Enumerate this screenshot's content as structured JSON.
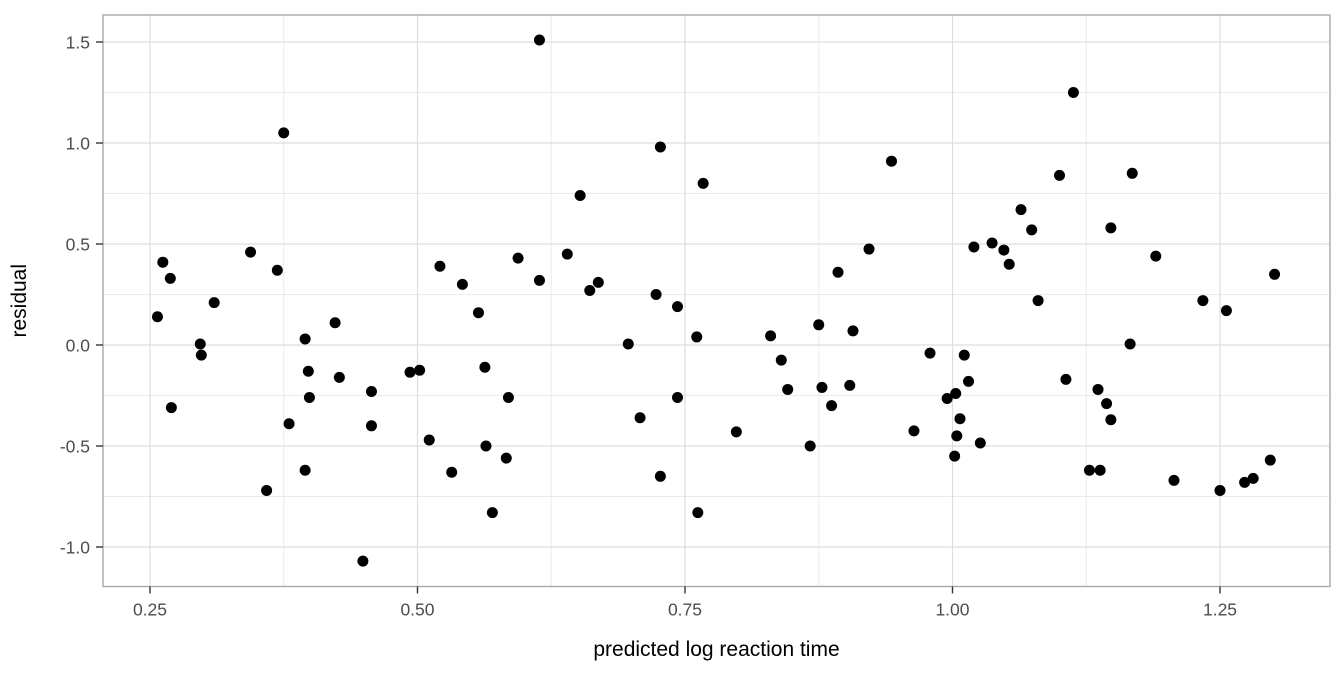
{
  "chart_data": {
    "type": "scatter",
    "title": "",
    "xlabel": "predicted log reaction time",
    "ylabel": "residual",
    "x_ticks": [
      0.25,
      0.5,
      0.75,
      1.0,
      1.25
    ],
    "x_tick_labels": [
      "0.25",
      "0.50",
      "0.75",
      "1.00",
      "1.25"
    ],
    "y_ticks": [
      -1.0,
      -0.5,
      0.0,
      0.5,
      1.0,
      1.5
    ],
    "y_tick_labels": [
      "-1.0",
      "-0.5",
      "0.0",
      "0.5",
      "1.0",
      "1.5"
    ],
    "xlim": [
      0.2061,
      1.3528
    ],
    "ylim": [
      -1.1955,
      1.6337
    ],
    "grid": true,
    "legend": false,
    "colors": {
      "background": "#ffffff",
      "panel_background": "#ffffff",
      "panel_border": "#a8a8a8",
      "grid_major": "#dddddd",
      "grid_minor": "#ebebeb",
      "tick_mark": "#333333",
      "tick_label": "#4d4d4d",
      "axis_title": "#000000",
      "point": "#000000"
    },
    "point_radius": 5.5,
    "points": [
      [
        0.375,
        1.05
      ],
      [
        0.262,
        0.41
      ],
      [
        0.269,
        0.33
      ],
      [
        0.344,
        0.46
      ],
      [
        0.369,
        0.37
      ],
      [
        0.31,
        0.21
      ],
      [
        0.257,
        0.14
      ],
      [
        0.423,
        0.11
      ],
      [
        0.395,
        0.03
      ],
      [
        0.297,
        0.005
      ],
      [
        0.298,
        -0.05
      ],
      [
        0.398,
        -0.13
      ],
      [
        0.427,
        -0.16
      ],
      [
        0.457,
        -0.23
      ],
      [
        0.399,
        -0.26
      ],
      [
        0.27,
        -0.31
      ],
      [
        0.38,
        -0.39
      ],
      [
        0.457,
        -0.4
      ],
      [
        0.395,
        -0.62
      ],
      [
        0.359,
        -0.72
      ],
      [
        0.449,
        -1.07
      ],
      [
        0.493,
        -0.135
      ],
      [
        0.502,
        -0.125
      ],
      [
        0.614,
        1.51
      ],
      [
        0.727,
        0.98
      ],
      [
        0.767,
        0.8
      ],
      [
        0.652,
        0.74
      ],
      [
        0.64,
        0.45
      ],
      [
        0.594,
        0.43
      ],
      [
        0.521,
        0.39
      ],
      [
        0.542,
        0.3
      ],
      [
        0.614,
        0.32
      ],
      [
        0.669,
        0.31
      ],
      [
        0.661,
        0.27
      ],
      [
        0.723,
        0.25
      ],
      [
        0.557,
        0.16
      ],
      [
        0.743,
        0.19
      ],
      [
        0.761,
        0.04
      ],
      [
        0.697,
        0.005
      ],
      [
        0.563,
        -0.11
      ],
      [
        0.585,
        -0.26
      ],
      [
        0.708,
        -0.36
      ],
      [
        0.743,
        -0.26
      ],
      [
        0.511,
        -0.47
      ],
      [
        0.564,
        -0.5
      ],
      [
        0.583,
        -0.56
      ],
      [
        0.532,
        -0.63
      ],
      [
        0.727,
        -0.65
      ],
      [
        0.57,
        -0.83
      ],
      [
        0.762,
        -0.83
      ],
      [
        0.943,
        0.91
      ],
      [
        1.064,
        0.67
      ],
      [
        1.02,
        0.485
      ],
      [
        1.037,
        0.505
      ],
      [
        1.048,
        0.47
      ],
      [
        1.053,
        0.4
      ],
      [
        0.922,
        0.475
      ],
      [
        0.893,
        0.36
      ],
      [
        0.875,
        0.1
      ],
      [
        0.907,
        0.07
      ],
      [
        0.83,
        0.045
      ],
      [
        0.84,
        -0.075
      ],
      [
        0.846,
        -0.22
      ],
      [
        0.878,
        -0.21
      ],
      [
        0.904,
        -0.2
      ],
      [
        0.887,
        -0.3
      ],
      [
        0.798,
        -0.43
      ],
      [
        0.867,
        -0.5
      ],
      [
        0.979,
        -0.04
      ],
      [
        1.011,
        -0.05
      ],
      [
        1.015,
        -0.18
      ],
      [
        0.995,
        -0.265
      ],
      [
        1.003,
        -0.24
      ],
      [
        1.007,
        -0.365
      ],
      [
        1.004,
        -0.45
      ],
      [
        1.026,
        -0.485
      ],
      [
        1.002,
        -0.55
      ],
      [
        0.964,
        -0.425
      ],
      [
        1.113,
        1.25
      ],
      [
        1.1,
        0.84
      ],
      [
        1.168,
        0.85
      ],
      [
        1.074,
        0.57
      ],
      [
        1.148,
        0.58
      ],
      [
        1.19,
        0.44
      ],
      [
        1.301,
        0.35
      ],
      [
        1.08,
        0.22
      ],
      [
        1.234,
        0.22
      ],
      [
        1.256,
        0.17
      ],
      [
        1.166,
        0.005
      ],
      [
        1.106,
        -0.17
      ],
      [
        1.136,
        -0.22
      ],
      [
        1.144,
        -0.29
      ],
      [
        1.148,
        -0.37
      ],
      [
        1.128,
        -0.62
      ],
      [
        1.138,
        -0.62
      ],
      [
        1.207,
        -0.67
      ],
      [
        1.25,
        -0.72
      ],
      [
        1.273,
        -0.68
      ],
      [
        1.281,
        -0.66
      ],
      [
        1.297,
        -0.57
      ]
    ]
  }
}
